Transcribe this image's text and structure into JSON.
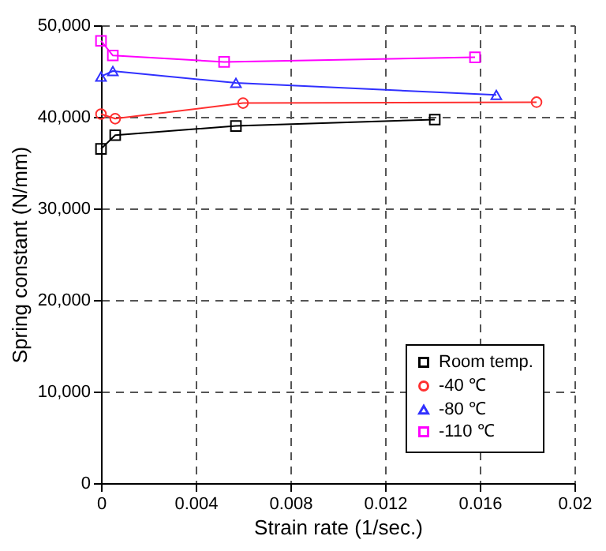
{
  "chart_data": {
    "type": "line",
    "xlabel": "Strain rate (1/sec.)",
    "ylabel": "Spring constant (N/mm)",
    "xlim": [
      0,
      0.02
    ],
    "xticks": [
      0,
      0.004,
      0.008,
      0.012,
      0.016,
      0.02
    ],
    "ylim": [
      0,
      50000
    ],
    "yticks": [
      0,
      {
        "value": 10000,
        "label": "10,000"
      },
      {
        "value": 20000,
        "label": "20,000"
      },
      {
        "value": 30000,
        "label": "30,000"
      },
      {
        "value": 40000,
        "label": "40,000"
      },
      {
        "value": 50000,
        "label": "50,000"
      }
    ],
    "grid": true,
    "legend": "bottom right",
    "series": [
      {
        "name": "Room temp.",
        "color": "#000000",
        "marker": "square",
        "x": [
          0,
          0.0006,
          0.0057,
          0.0141
        ],
        "values": [
          36500,
          38000,
          39000,
          39700
        ]
      },
      {
        "name": "-40 ℃",
        "color": "#ff3030",
        "marker": "circle",
        "x": [
          0,
          0.0006,
          0.006,
          0.0184
        ],
        "values": [
          40300,
          39800,
          41500,
          41600
        ]
      },
      {
        "name": "-80 ℃",
        "color": "#3030ff",
        "marker": "triangle",
        "x": [
          0,
          0.0005,
          0.0057,
          0.0167
        ],
        "values": [
          44400,
          45000,
          43700,
          42400
        ]
      },
      {
        "name": "-110 ℃",
        "color": "#ff00ff",
        "marker": "square",
        "x": [
          0,
          0.0005,
          0.0052,
          0.0158
        ],
        "values": [
          48300,
          46700,
          46000,
          46500
        ]
      }
    ]
  }
}
